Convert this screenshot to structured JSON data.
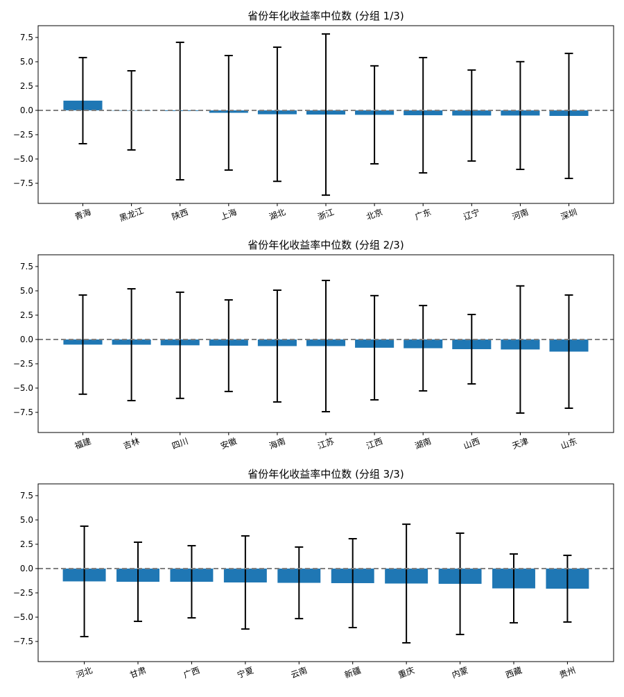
{
  "chart_data": [
    {
      "type": "bar",
      "title": "省份年化收益率中位数 (分组 1/3)",
      "categories": [
        "青海",
        "黑龙江",
        "陕西",
        "上海",
        "湖北",
        "浙江",
        "北京",
        "广东",
        "辽宁",
        "河南",
        "深圳"
      ],
      "values": [
        1.0,
        0.0,
        -0.07,
        -0.25,
        -0.4,
        -0.43,
        -0.46,
        -0.5,
        -0.53,
        -0.53,
        -0.57
      ],
      "errors": [
        4.43,
        4.07,
        7.07,
        5.89,
        6.9,
        8.29,
        5.04,
        5.93,
        4.68,
        5.54,
        6.43
      ],
      "color": "#1f77b4",
      "error_color": "#000000",
      "reference_line": 0,
      "reference_color": "#808080",
      "ylim": [
        -9.57,
        8.71
      ],
      "yticks": [
        {
          "value": -7.5,
          "label": "−7.5"
        },
        {
          "value": -5,
          "label": "−5.0"
        },
        {
          "value": -2.5,
          "label": "−2.5"
        },
        {
          "value": 0,
          "label": "0.0"
        },
        {
          "value": 2.5,
          "label": "2.5"
        },
        {
          "value": 5,
          "label": "5.0"
        },
        {
          "value": 7.5,
          "label": "7.5"
        }
      ]
    },
    {
      "type": "bar",
      "title": "省份年化收益率中位数 (分组 2/3)",
      "categories": [
        "福建",
        "吉林",
        "四川",
        "安徽",
        "海南",
        "江苏",
        "江西",
        "湖南",
        "山西",
        "天津",
        "山东"
      ],
      "values": [
        -0.53,
        -0.54,
        -0.6,
        -0.64,
        -0.68,
        -0.68,
        -0.85,
        -0.9,
        -1.0,
        -1.03,
        -1.25
      ],
      "errors": [
        5.1,
        5.75,
        5.46,
        4.71,
        5.75,
        6.75,
        5.36,
        4.39,
        3.57,
        6.54,
        5.82
      ],
      "color": "#1f77b4",
      "error_color": "#000000",
      "reference_line": 0,
      "reference_color": "#808080",
      "ylim": [
        -9.57,
        8.71
      ],
      "yticks": [
        {
          "value": -7.5,
          "label": "−7.5"
        },
        {
          "value": -5,
          "label": "−5.0"
        },
        {
          "value": -2.5,
          "label": "−2.5"
        },
        {
          "value": 0,
          "label": "0.0"
        },
        {
          "value": 2.5,
          "label": "2.5"
        },
        {
          "value": 5,
          "label": "5.0"
        },
        {
          "value": 7.5,
          "label": "7.5"
        }
      ]
    },
    {
      "type": "bar",
      "title": "省份年化收益率中位数 (分组 3/3)",
      "categories": [
        "河北",
        "甘肃",
        "广西",
        "宁夏",
        "云南",
        "新疆",
        "重庆",
        "内蒙",
        "西藏",
        "贵州"
      ],
      "values": [
        -1.32,
        -1.36,
        -1.36,
        -1.43,
        -1.47,
        -1.5,
        -1.54,
        -1.57,
        -2.04,
        -2.07
      ],
      "errors": [
        5.68,
        4.07,
        3.71,
        4.79,
        3.68,
        4.57,
        6.1,
        5.21,
        3.54,
        3.43
      ],
      "color": "#1f77b4",
      "error_color": "#000000",
      "reference_line": 0,
      "reference_color": "#808080",
      "ylim": [
        -9.57,
        8.71
      ],
      "yticks": [
        {
          "value": -7.5,
          "label": "−7.5"
        },
        {
          "value": -5,
          "label": "−5.0"
        },
        {
          "value": -2.5,
          "label": "−2.5"
        },
        {
          "value": 0,
          "label": "0.0"
        },
        {
          "value": 2.5,
          "label": "2.5"
        },
        {
          "value": 5,
          "label": "5.0"
        },
        {
          "value": 7.5,
          "label": "7.5"
        }
      ]
    }
  ]
}
